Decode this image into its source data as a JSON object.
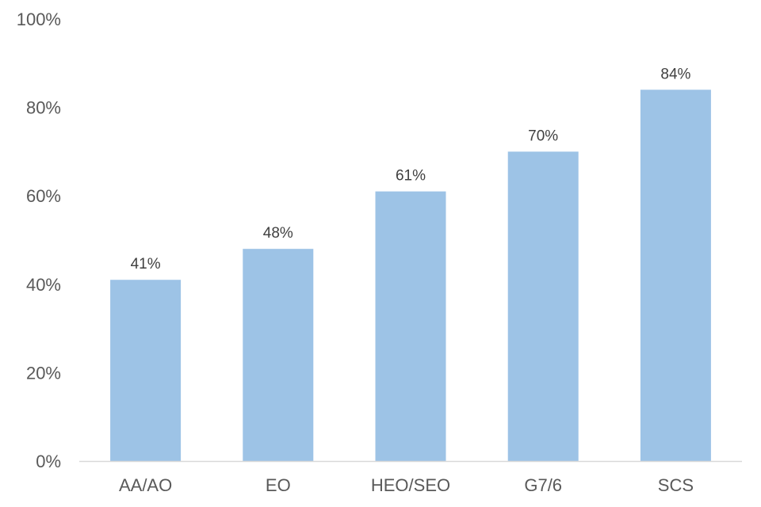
{
  "chart_data": {
    "type": "bar",
    "title": "",
    "xlabel": "",
    "ylabel": "",
    "categories": [
      "AA/AO",
      "EO",
      "HEO/SEO",
      "G7/6",
      "SCS"
    ],
    "values": [
      41,
      48,
      61,
      70,
      84
    ],
    "data_labels": [
      "41%",
      "48%",
      "61%",
      "70%",
      "84%"
    ],
    "ylim": [
      0,
      100
    ],
    "y_ticks": [
      0,
      20,
      40,
      60,
      80,
      100
    ],
    "y_tick_labels": [
      "0%",
      "20%",
      "40%",
      "60%",
      "80%",
      "100%"
    ],
    "grid": false,
    "legend": "none",
    "bar_color": "#9DC3E6",
    "axis_color": "#D9D9D9"
  }
}
